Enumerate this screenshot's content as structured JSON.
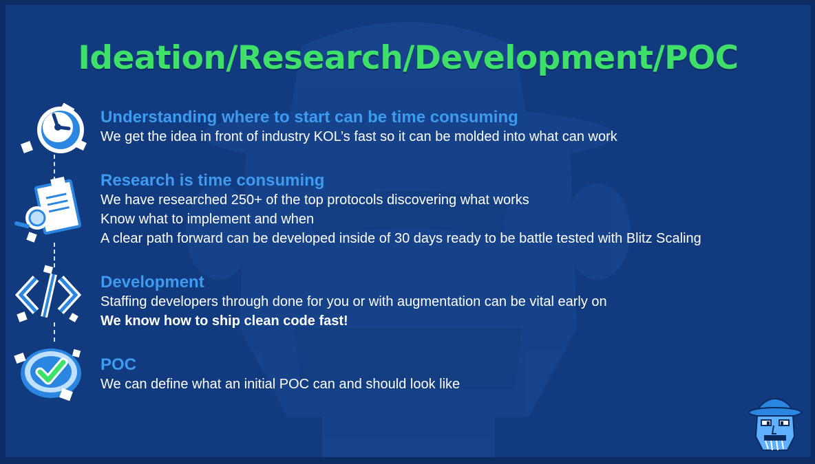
{
  "slide": {
    "title": "Ideation/Research/Development/POC",
    "accent_color": "#3ee06a",
    "heading_color": "#3d9bf0",
    "background_color": "#123a7e",
    "items": [
      {
        "heading": "Understanding where to start can be time consuming",
        "lines": [
          "We get the idea in front of industry KOL’s fast so it can be molded into what can work"
        ],
        "icon": "stopwatch-icon"
      },
      {
        "heading": "Research is time consuming",
        "lines": [
          "We have researched 250+ of the top protocols discovering what works",
          "Know what to implement and when",
          "A clear path forward can be developed inside of 30 days ready to be battle tested with Blitz Scaling"
        ],
        "icon": "clipboard-magnifier-icon"
      },
      {
        "heading": "Development",
        "lines": [
          "Staffing developers through done for you or with augmentation can be vital early on",
          "We know how to ship clean code fast!"
        ],
        "icon": "code-brackets-icon"
      },
      {
        "heading": "POC",
        "lines": [
          "We can define what an initial POC can and should look like"
        ],
        "icon": "checkmark-badge-icon"
      }
    ],
    "mascot_icon": "hat-mascot-icon"
  }
}
